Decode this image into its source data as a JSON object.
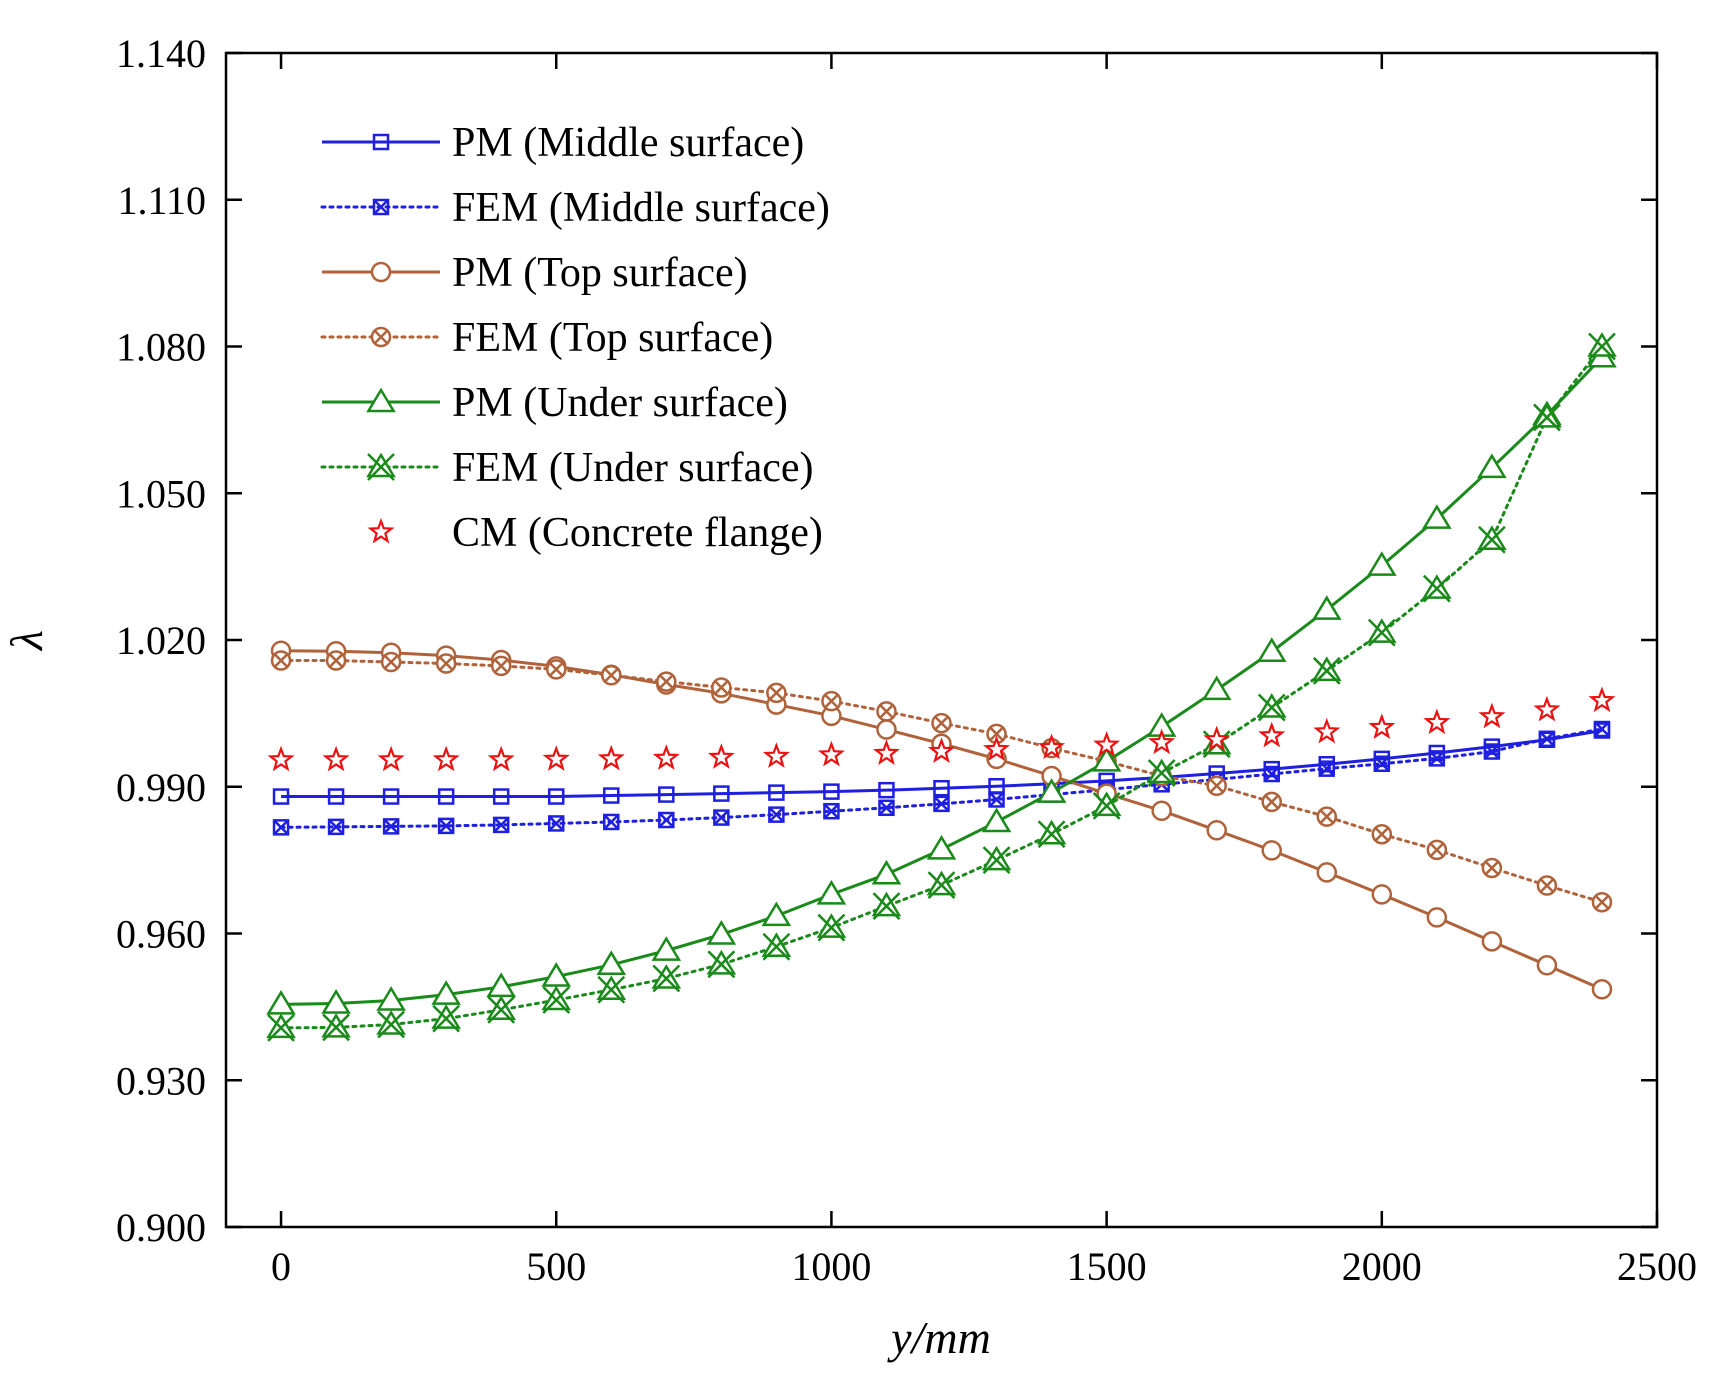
{
  "chart_data": {
    "type": "line",
    "xlabel": "y/mm",
    "ylabel": "λ",
    "xlim": [
      -100,
      2500
    ],
    "ylim": [
      0.9,
      1.14
    ],
    "xticks": [
      0,
      500,
      1000,
      1500,
      2000,
      2500
    ],
    "xtick_labels": [
      "0",
      "500",
      "1000",
      "1500",
      "2000",
      "2500"
    ],
    "yticks": [
      0.9,
      0.93,
      0.96,
      0.99,
      1.02,
      1.05,
      1.08,
      1.11,
      1.14
    ],
    "ytick_labels": [
      "0.900",
      "0.930",
      "0.960",
      "0.990",
      "1.020",
      "1.050",
      "1.080",
      "1.110",
      "1.140"
    ],
    "grid": false,
    "legend_position": "top-left",
    "x": [
      0,
      100,
      200,
      300,
      400,
      500,
      600,
      700,
      800,
      900,
      1000,
      1100,
      1200,
      1300,
      1400,
      1500,
      1600,
      1700,
      1800,
      1900,
      2000,
      2100,
      2200,
      2300,
      2400
    ],
    "series": [
      {
        "name": "PM (Middle surface)",
        "color": "#1f1fe0",
        "line": "solid",
        "marker": "square",
        "values": [
          0.988,
          0.988,
          0.988,
          0.988,
          0.988,
          0.988,
          0.9882,
          0.9884,
          0.9886,
          0.9888,
          0.989,
          0.9893,
          0.9897,
          0.9901,
          0.9906,
          0.9912,
          0.9919,
          0.9927,
          0.9936,
          0.9946,
          0.9957,
          0.9969,
          0.9982,
          0.9996,
          1.0015
        ]
      },
      {
        "name": "FEM (Middle surface)",
        "color": "#1f1fe0",
        "line": "dotted",
        "marker": "square-x",
        "values": [
          0.9817,
          0.9818,
          0.9819,
          0.982,
          0.9822,
          0.9825,
          0.9828,
          0.9832,
          0.9837,
          0.9843,
          0.985,
          0.9857,
          0.9865,
          0.9874,
          0.9884,
          0.9894,
          0.9905,
          0.9915,
          0.9926,
          0.9937,
          0.9947,
          0.9958,
          0.9972,
          0.9998,
          1.0018
        ]
      },
      {
        "name": "PM (Top surface)",
        "color": "#b0623a",
        "line": "solid",
        "marker": "circle",
        "values": [
          1.0178,
          1.0177,
          1.0174,
          1.0168,
          1.0159,
          1.0146,
          1.0129,
          1.0109,
          1.0091,
          1.0068,
          1.0045,
          1.0017,
          0.9988,
          0.9957,
          0.9922,
          0.9886,
          0.9851,
          0.9811,
          0.977,
          0.9725,
          0.968,
          0.9633,
          0.9584,
          0.9535,
          0.9486
        ]
      },
      {
        "name": "FEM (Top surface)",
        "color": "#b0623a",
        "line": "dotted",
        "marker": "circle-x",
        "values": [
          1.0158,
          1.0158,
          1.0155,
          1.0152,
          1.0147,
          1.014,
          1.0128,
          1.0115,
          1.0103,
          1.0092,
          1.0075,
          1.0054,
          1.003,
          1.0008,
          0.9979,
          0.9952,
          0.9922,
          0.9902,
          0.9869,
          0.9839,
          0.9803,
          0.9771,
          0.9734,
          0.9698,
          0.9664
        ]
      },
      {
        "name": "PM (Under surface)",
        "color": "#1a8a1a",
        "line": "solid",
        "marker": "triangle",
        "values": [
          0.9455,
          0.9457,
          0.9463,
          0.9475,
          0.9491,
          0.9512,
          0.9536,
          0.9565,
          0.9598,
          0.9636,
          0.968,
          0.9721,
          0.9772,
          0.9828,
          0.9888,
          0.9952,
          1.0023,
          1.0098,
          1.0176,
          1.0262,
          1.0352,
          1.0448,
          1.0552,
          1.066,
          1.0778
        ]
      },
      {
        "name": "FEM (Under surface)",
        "color": "#1a8a1a",
        "line": "dotted",
        "marker": "x-triangle",
        "values": [
          0.9407,
          0.9408,
          0.9414,
          0.9426,
          0.9444,
          0.9464,
          0.9485,
          0.9508,
          0.9537,
          0.9573,
          0.9612,
          0.9656,
          0.9699,
          0.975,
          0.9803,
          0.9861,
          0.9928,
          0.9987,
          1.0062,
          1.0137,
          1.0215,
          1.0305,
          1.0405,
          1.0655,
          1.08
        ]
      },
      {
        "name": "CM (Concrete flange)",
        "color": "#ee1111",
        "line": "none",
        "marker": "star",
        "values": [
          0.9955,
          0.9955,
          0.9955,
          0.9955,
          0.9955,
          0.9956,
          0.9957,
          0.9958,
          0.996,
          0.9962,
          0.9965,
          0.9968,
          0.9972,
          0.9976,
          0.998,
          0.9985,
          0.999,
          0.9996,
          1.0004,
          1.0012,
          1.0021,
          1.0031,
          1.0043,
          1.0057,
          1.0076
        ]
      }
    ]
  }
}
